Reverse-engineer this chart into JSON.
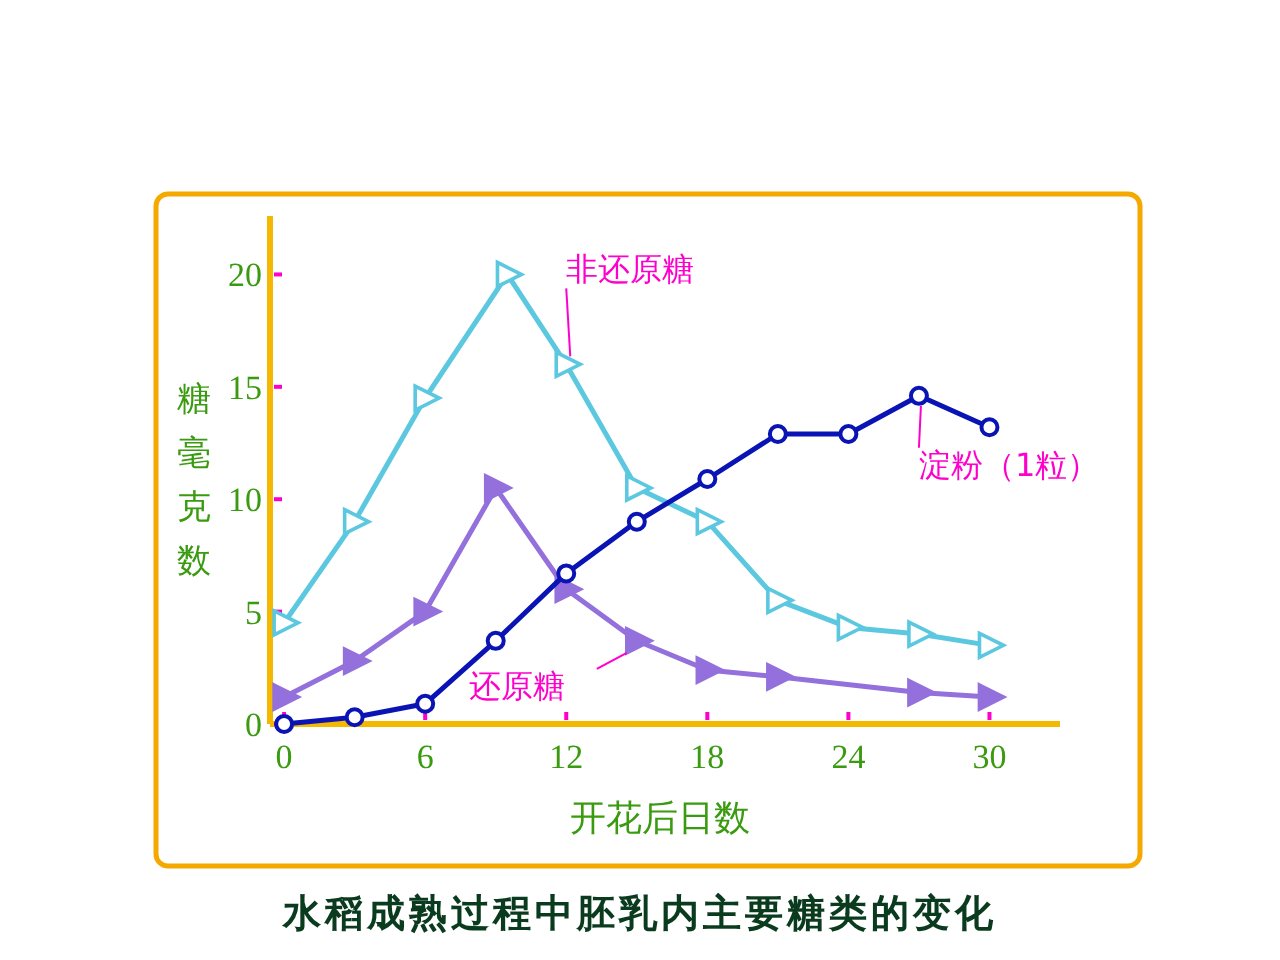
{
  "chart_data": {
    "type": "line",
    "title": "水稻成熟过程中胚乳内主要糖类的变化",
    "xlabel": "开花后日数",
    "ylabel": "糖毫克数",
    "xlim": [
      -0.6,
      33
    ],
    "xticks": [
      0,
      6,
      12,
      18,
      24,
      30
    ],
    "ylim": [
      0,
      22.6
    ],
    "yticks": [
      0,
      5,
      10,
      15,
      20
    ],
    "grid": false,
    "series": [
      {
        "name": "非还原糖",
        "color": "#5bc8e0",
        "marker": "triangle",
        "x": [
          0,
          3,
          6,
          9.5,
          12,
          15,
          18,
          21,
          24,
          27,
          30
        ],
        "values": [
          4.5,
          9,
          14.5,
          20,
          16,
          10.5,
          9,
          5.5,
          4.3,
          4,
          3.5
        ]
      },
      {
        "name": "还原糖",
        "color": "#9370db",
        "marker": "triangle",
        "x": [
          0,
          3,
          6,
          9,
          12,
          15,
          18,
          21,
          27,
          30
        ],
        "values": [
          1.2,
          2.8,
          5,
          10.5,
          6,
          3.7,
          2.4,
          2.1,
          1.4,
          1.2
        ]
      },
      {
        "name": "淀粉（1粒）",
        "color": "#0a14b4",
        "marker": "circle",
        "x": [
          0,
          3,
          6,
          9,
          12,
          15,
          18,
          21,
          24,
          27,
          30
        ],
        "values": [
          0,
          0.3,
          0.9,
          3.7,
          6.7,
          9,
          10.9,
          12.9,
          12.9,
          14.6,
          13.2
        ]
      }
    ]
  }
}
